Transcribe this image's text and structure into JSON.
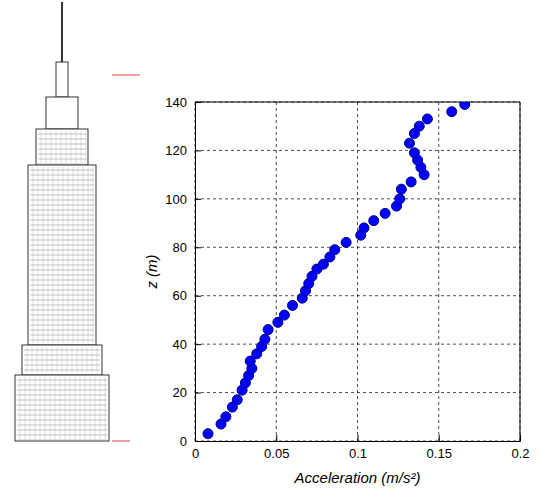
{
  "chart_data": {
    "type": "scatter",
    "xlabel": "Acceleration (m/s²)",
    "ylabel": "z (m)",
    "x": [
      0.008,
      0.016,
      0.019,
      0.023,
      0.026,
      0.029,
      0.031,
      0.033,
      0.035,
      0.034,
      0.038,
      0.041,
      0.043,
      0.045,
      0.051,
      0.055,
      0.06,
      0.066,
      0.068,
      0.07,
      0.072,
      0.075,
      0.079,
      0.083,
      0.086,
      0.093,
      0.102,
      0.104,
      0.11,
      0.117,
      0.124,
      0.126,
      0.127,
      0.133,
      0.141,
      0.139,
      0.137,
      0.135,
      0.132,
      0.135,
      0.138,
      0.143,
      0.158,
      0.166
    ],
    "y": [
      3,
      7,
      10,
      14,
      17,
      21,
      24,
      27,
      30,
      33,
      36,
      39,
      42,
      46,
      49,
      52,
      56,
      59,
      62,
      65,
      68,
      71,
      73,
      76,
      79,
      82,
      85,
      88,
      91,
      94,
      97,
      100,
      104,
      107,
      110,
      113,
      116,
      119,
      123,
      127,
      130,
      133,
      136,
      139
    ],
    "xlim": [
      0,
      0.2
    ],
    "xticks": [
      0,
      0.05,
      0.1,
      0.15,
      0.2
    ],
    "ylim": [
      0,
      140
    ],
    "yticks": [
      0,
      20,
      40,
      60,
      80,
      100,
      120,
      140
    ],
    "grid": true,
    "color": "#0000ff",
    "marker": "circle"
  }
}
